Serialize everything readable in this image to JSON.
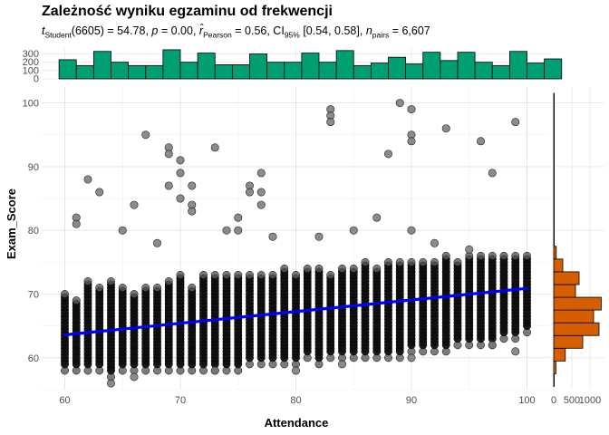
{
  "chart_data": {
    "type": "scatter",
    "title": "Zależność wyniku egzaminu od frekwencji",
    "subtitle": {
      "t_label": "t",
      "t_sub": "Student",
      "t_df": "(6605) = 54.78,",
      "p_label": "p",
      "p_value": "= 0.00,",
      "r_label": "r̂",
      "r_sub": "Pearson",
      "r_value": "= 0.56, CI",
      "ci_sub": "95%",
      "ci_value": "[0.54, 0.58],",
      "n_label": "n",
      "n_sub": "pairs",
      "n_value": "= 6,607"
    },
    "xlabel": "Attendance",
    "ylabel": "Exam_Score",
    "xlim": [
      58,
      102
    ],
    "ylim": [
      55,
      102.5
    ],
    "x_ticks": [
      60,
      70,
      80,
      90,
      100
    ],
    "y_ticks": [
      60,
      70,
      80,
      90,
      100
    ],
    "grid": true,
    "regression": {
      "x": [
        60,
        100
      ],
      "y": [
        63.6,
        70.9
      ],
      "color": "#0000ff"
    },
    "points": {
      "color": "#000000",
      "main_band": [
        {
          "x": 60,
          "lo": 58,
          "hi": 70
        },
        {
          "x": 61,
          "lo": 58,
          "hi": 69
        },
        {
          "x": 62,
          "lo": 58,
          "hi": 72
        },
        {
          "x": 63,
          "lo": 58,
          "hi": 71
        },
        {
          "x": 64,
          "lo": 57,
          "hi": 72
        },
        {
          "x": 65,
          "lo": 58,
          "hi": 71
        },
        {
          "x": 66,
          "lo": 58,
          "hi": 70
        },
        {
          "x": 67,
          "lo": 58,
          "hi": 71
        },
        {
          "x": 68,
          "lo": 58,
          "hi": 71
        },
        {
          "x": 69,
          "lo": 58,
          "hi": 72
        },
        {
          "x": 70,
          "lo": 58,
          "hi": 73
        },
        {
          "x": 71,
          "lo": 58,
          "hi": 71
        },
        {
          "x": 72,
          "lo": 58,
          "hi": 73
        },
        {
          "x": 73,
          "lo": 58,
          "hi": 73
        },
        {
          "x": 74,
          "lo": 58,
          "hi": 73
        },
        {
          "x": 75,
          "lo": 58,
          "hi": 73
        },
        {
          "x": 76,
          "lo": 59,
          "hi": 73
        },
        {
          "x": 77,
          "lo": 59,
          "hi": 73
        },
        {
          "x": 78,
          "lo": 59,
          "hi": 73
        },
        {
          "x": 79,
          "lo": 59,
          "hi": 74
        },
        {
          "x": 80,
          "lo": 59,
          "hi": 73
        },
        {
          "x": 81,
          "lo": 60,
          "hi": 74
        },
        {
          "x": 82,
          "lo": 59,
          "hi": 74
        },
        {
          "x": 83,
          "lo": 60,
          "hi": 73
        },
        {
          "x": 84,
          "lo": 60,
          "hi": 74
        },
        {
          "x": 85,
          "lo": 60,
          "hi": 74
        },
        {
          "x": 86,
          "lo": 60,
          "hi": 75
        },
        {
          "x": 87,
          "lo": 60,
          "hi": 74
        },
        {
          "x": 88,
          "lo": 60,
          "hi": 75
        },
        {
          "x": 89,
          "lo": 60,
          "hi": 75
        },
        {
          "x": 90,
          "lo": 61,
          "hi": 75
        },
        {
          "x": 91,
          "lo": 61,
          "hi": 75
        },
        {
          "x": 92,
          "lo": 61,
          "hi": 75
        },
        {
          "x": 93,
          "lo": 61,
          "hi": 76
        },
        {
          "x": 94,
          "lo": 62,
          "hi": 75
        },
        {
          "x": 95,
          "lo": 62,
          "hi": 76
        },
        {
          "x": 96,
          "lo": 62,
          "hi": 76
        },
        {
          "x": 97,
          "lo": 62,
          "hi": 76
        },
        {
          "x": 98,
          "lo": 63,
          "hi": 76
        },
        {
          "x": 99,
          "lo": 63,
          "hi": 76
        },
        {
          "x": 100,
          "lo": 64,
          "hi": 76
        }
      ],
      "outliers": [
        {
          "x": 61,
          "y": 82
        },
        {
          "x": 61,
          "y": 81
        },
        {
          "x": 62,
          "y": 88
        },
        {
          "x": 63,
          "y": 86
        },
        {
          "x": 65,
          "y": 80
        },
        {
          "x": 66,
          "y": 84
        },
        {
          "x": 67,
          "y": 95
        },
        {
          "x": 68,
          "y": 78
        },
        {
          "x": 69,
          "y": 93
        },
        {
          "x": 69,
          "y": 92
        },
        {
          "x": 69,
          "y": 87
        },
        {
          "x": 70,
          "y": 91
        },
        {
          "x": 70,
          "y": 89
        },
        {
          "x": 70,
          "y": 85
        },
        {
          "x": 71,
          "y": 87
        },
        {
          "x": 71,
          "y": 84
        },
        {
          "x": 71,
          "y": 83
        },
        {
          "x": 73,
          "y": 93
        },
        {
          "x": 74,
          "y": 80
        },
        {
          "x": 75,
          "y": 82
        },
        {
          "x": 75,
          "y": 80
        },
        {
          "x": 76,
          "y": 87
        },
        {
          "x": 76,
          "y": 86
        },
        {
          "x": 77,
          "y": 89
        },
        {
          "x": 77,
          "y": 86
        },
        {
          "x": 77,
          "y": 84
        },
        {
          "x": 83,
          "y": 99
        },
        {
          "x": 83,
          "y": 98
        },
        {
          "x": 83,
          "y": 97
        },
        {
          "x": 85,
          "y": 80
        },
        {
          "x": 88,
          "y": 92
        },
        {
          "x": 89,
          "y": 100
        },
        {
          "x": 90,
          "y": 99
        },
        {
          "x": 90,
          "y": 95
        },
        {
          "x": 90,
          "y": 94
        },
        {
          "x": 93,
          "y": 96
        },
        {
          "x": 96,
          "y": 94
        },
        {
          "x": 97,
          "y": 89
        },
        {
          "x": 99,
          "y": 97
        },
        {
          "x": 87,
          "y": 82
        },
        {
          "x": 90,
          "y": 80
        },
        {
          "x": 78,
          "y": 79
        },
        {
          "x": 82,
          "y": 79
        },
        {
          "x": 92,
          "y": 78
        },
        {
          "x": 95,
          "y": 77
        },
        {
          "x": 64,
          "y": 56
        },
        {
          "x": 66,
          "y": 57
        },
        {
          "x": 73,
          "y": 58
        },
        {
          "x": 80,
          "y": 58
        },
        {
          "x": 84,
          "y": 59
        },
        {
          "x": 90,
          "y": 60
        },
        {
          "x": 97,
          "y": 62
        },
        {
          "x": 99,
          "y": 61
        }
      ]
    },
    "top_histogram": {
      "color": "#009E73",
      "x_start": 59.5,
      "bin_width": 1.5,
      "counts": [
        230,
        160,
        330,
        200,
        160,
        160,
        350,
        200,
        310,
        170,
        170,
        300,
        200,
        200,
        310,
        200,
        340,
        160,
        190,
        260,
        180,
        320,
        220,
        320,
        200,
        160,
        330,
        190,
        240
      ],
      "ticks": [
        0,
        100,
        200,
        300
      ]
    },
    "right_histogram": {
      "color": "#D55E00",
      "bins": [
        {
          "y0": 55.5,
          "y1": 57.5,
          "count": 15
        },
        {
          "y0": 57.5,
          "y1": 59.5,
          "count": 60
        },
        {
          "y0": 59.5,
          "y1": 61.5,
          "count": 320
        },
        {
          "y0": 61.5,
          "y1": 63.5,
          "count": 800
        },
        {
          "y0": 63.5,
          "y1": 65.5,
          "count": 1250
        },
        {
          "y0": 65.5,
          "y1": 67.5,
          "count": 1100
        },
        {
          "y0": 67.5,
          "y1": 69.5,
          "count": 1310
        },
        {
          "y0": 69.5,
          "y1": 71.5,
          "count": 600
        },
        {
          "y0": 71.5,
          "y1": 73.5,
          "count": 700
        },
        {
          "y0": 73.5,
          "y1": 75.5,
          "count": 250
        },
        {
          "y0": 75.5,
          "y1": 77.5,
          "count": 70
        },
        {
          "y0": 77.5,
          "y1": 79.5,
          "count": 15
        },
        {
          "y0": 79.5,
          "y1": 101.5,
          "count": 10
        }
      ],
      "ticks": [
        "0",
        "500",
        "1000"
      ]
    }
  }
}
